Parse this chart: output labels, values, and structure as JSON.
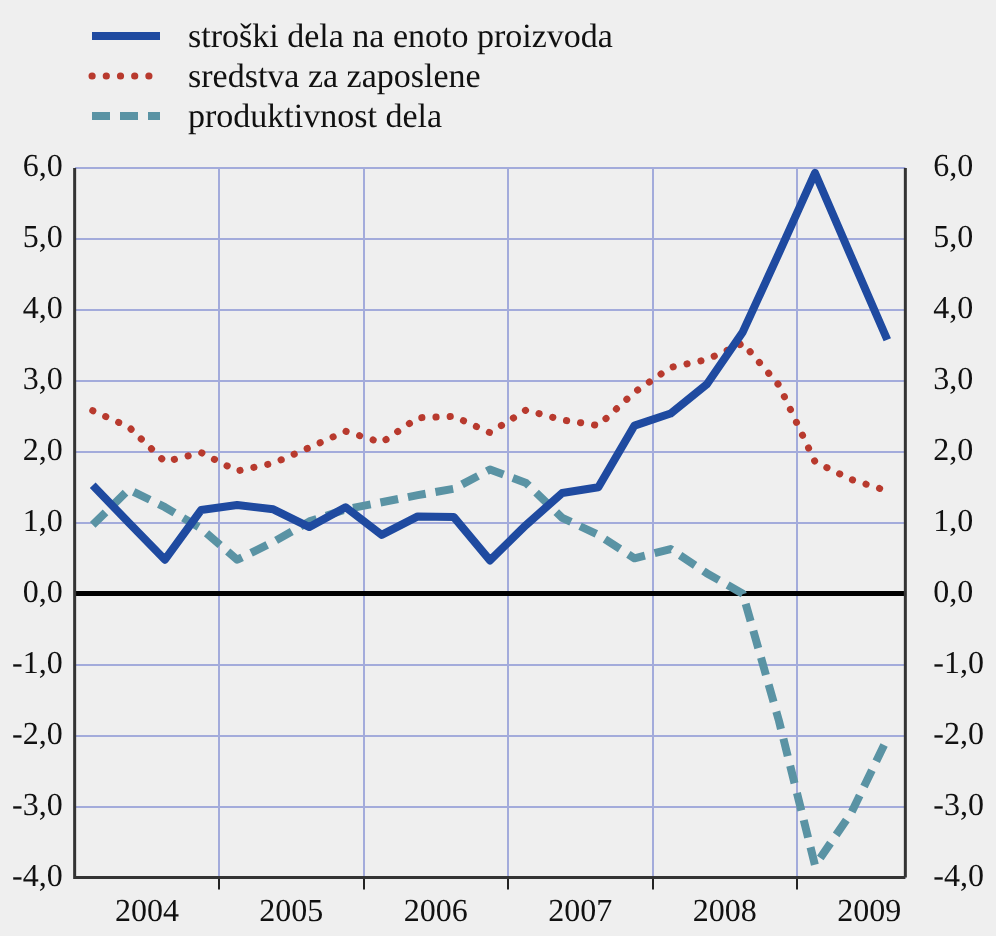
{
  "chart_data": {
    "type": "line",
    "x": [
      2004.125,
      2004.375,
      2004.625,
      2004.875,
      2005.125,
      2005.375,
      2005.625,
      2005.875,
      2006.125,
      2006.375,
      2006.625,
      2006.875,
      2007.125,
      2007.375,
      2007.625,
      2007.875,
      2008.125,
      2008.375,
      2008.625,
      2008.875,
      2009.125,
      2009.375,
      2009.625
    ],
    "series": [
      {
        "name": "stroški dela na enoto proizvoda",
        "color": "#1f4aa0",
        "line_style": "solid",
        "values": [
          1.53,
          1.0,
          0.48,
          1.18,
          1.25,
          1.19,
          0.94,
          1.22,
          0.83,
          1.09,
          1.08,
          0.47,
          0.97,
          1.42,
          1.5,
          2.37,
          2.54,
          2.95,
          3.69,
          4.8,
          5.93,
          4.75,
          3.58
        ]
      },
      {
        "name": "sredstva za zaposlene",
        "color": "#b83a2e",
        "line_style": "dotted",
        "values": [
          2.58,
          2.35,
          1.86,
          1.99,
          1.73,
          1.84,
          2.06,
          2.29,
          2.13,
          2.48,
          2.5,
          2.27,
          2.59,
          2.45,
          2.37,
          2.84,
          3.19,
          3.3,
          3.53,
          2.94,
          1.86,
          1.61,
          1.45
        ]
      },
      {
        "name": "produktivnost dela",
        "color": "#5a93a4",
        "line_style": "dashed",
        "values": [
          0.97,
          1.47,
          1.22,
          0.92,
          0.48,
          0.73,
          1.02,
          1.19,
          1.29,
          1.39,
          1.48,
          1.75,
          1.56,
          1.07,
          0.83,
          0.5,
          0.63,
          0.29,
          0.0,
          -1.79,
          -3.83,
          -3.09,
          -2.04
        ]
      }
    ],
    "xlim": [
      2004,
      2009.75
    ],
    "xticks": [
      {
        "value": 2004.5,
        "label": "2004"
      },
      {
        "value": 2005,
        "label": null
      },
      {
        "value": 2005.5,
        "label": "2005"
      },
      {
        "value": 2006,
        "label": null
      },
      {
        "value": 2006.5,
        "label": "2006"
      },
      {
        "value": 2007,
        "label": null
      },
      {
        "value": 2007.5,
        "label": "2007"
      },
      {
        "value": 2008,
        "label": null
      },
      {
        "value": 2008.5,
        "label": "2008"
      },
      {
        "value": 2009,
        "label": null
      },
      {
        "value": 2009.5,
        "label": "2009"
      }
    ],
    "ylim": [
      -4,
      6
    ],
    "yticks": [
      {
        "value": 6,
        "label": "6,0"
      },
      {
        "value": 5,
        "label": "5,0"
      },
      {
        "value": 4,
        "label": "4,0"
      },
      {
        "value": 3,
        "label": "3,0"
      },
      {
        "value": 2,
        "label": "2,0"
      },
      {
        "value": 1,
        "label": "1,0"
      },
      {
        "value": 0,
        "label": "0,0"
      },
      {
        "value": -1,
        "label": "-1,0"
      },
      {
        "value": -2,
        "label": "-2,0"
      },
      {
        "value": -3,
        "label": "-3,0"
      },
      {
        "value": -4,
        "label": "-4,0"
      }
    ],
    "y2lim": [
      -4,
      6
    ],
    "y2ticks": [
      {
        "value": 6,
        "label": "6,0"
      },
      {
        "value": 5,
        "label": "5,0"
      },
      {
        "value": 4,
        "label": "4,0"
      },
      {
        "value": 3,
        "label": "3,0"
      },
      {
        "value": 2,
        "label": "2,0"
      },
      {
        "value": 1,
        "label": "1,0"
      },
      {
        "value": 0,
        "label": "0,0"
      },
      {
        "value": -1,
        "label": "-1,0"
      },
      {
        "value": -2,
        "label": "-2,0"
      },
      {
        "value": -3,
        "label": "-3,0"
      },
      {
        "value": -4,
        "label": "-4,0"
      }
    ],
    "grid": true,
    "legend": "top left",
    "marker": "none"
  }
}
